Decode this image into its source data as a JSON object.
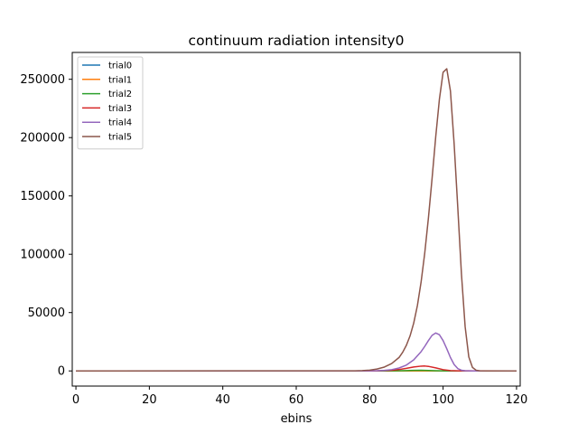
{
  "chart_data": {
    "type": "line",
    "title": "continuum radiation intensity0",
    "xlabel": "ebins",
    "ylabel": "",
    "xlim": [
      -1,
      121
    ],
    "ylim": [
      -13000,
      273000
    ],
    "xticks": [
      0,
      20,
      40,
      60,
      80,
      100,
      120
    ],
    "yticks": [
      0,
      50000,
      100000,
      150000,
      200000,
      250000
    ],
    "legend_position": "top-left",
    "grid": false,
    "series": [
      {
        "name": "trial0",
        "color": "#1f77b4",
        "x": [
          0,
          80,
          84,
          88,
          92,
          95,
          98,
          101,
          104,
          108,
          112,
          120
        ],
        "y": [
          0,
          0,
          0,
          0,
          0,
          0,
          0,
          0,
          0,
          0,
          0,
          0
        ]
      },
      {
        "name": "trial1",
        "color": "#ff7f0e",
        "x": [
          0,
          80,
          84,
          88,
          92,
          95,
          98,
          101,
          104,
          108,
          112,
          120
        ],
        "y": [
          0,
          0,
          0,
          0,
          0,
          0,
          0,
          0,
          0,
          0,
          0,
          0
        ]
      },
      {
        "name": "trial2",
        "color": "#2ca02c",
        "x": [
          0,
          80,
          84,
          86,
          88,
          90,
          92,
          94,
          96,
          98,
          100,
          102,
          104,
          120
        ],
        "y": [
          0,
          0,
          20,
          60,
          150,
          300,
          450,
          520,
          420,
          200,
          60,
          10,
          0,
          0
        ]
      },
      {
        "name": "trial3",
        "color": "#d62728",
        "x": [
          0,
          80,
          82,
          84,
          86,
          88,
          90,
          92,
          94,
          95,
          96,
          98,
          100,
          102,
          104,
          120
        ],
        "y": [
          0,
          20,
          80,
          250,
          600,
          1200,
          2200,
          3400,
          4100,
          4200,
          3900,
          2600,
          1100,
          300,
          50,
          0
        ]
      },
      {
        "name": "trial4",
        "color": "#9467bd",
        "x": [
          0,
          78,
          80,
          82,
          84,
          86,
          88,
          90,
          92,
          94,
          95,
          96,
          97,
          98,
          99,
          100,
          101,
          102,
          103,
          104,
          105,
          106,
          108,
          110,
          120
        ],
        "y": [
          0,
          10,
          50,
          150,
          450,
          1100,
          2500,
          5000,
          9500,
          16500,
          21000,
          26000,
          30500,
          32500,
          31000,
          26000,
          19000,
          11500,
          5500,
          2000,
          600,
          150,
          20,
          0,
          0
        ]
      },
      {
        "name": "trial5",
        "color": "#8c564b",
        "x": [
          0,
          76,
          78,
          80,
          82,
          84,
          86,
          88,
          89,
          90,
          91,
          92,
          93,
          94,
          95,
          96,
          97,
          98,
          99,
          100,
          101,
          102,
          103,
          104,
          105,
          106,
          107,
          108,
          109,
          110,
          112,
          120
        ],
        "y": [
          0,
          100,
          300,
          700,
          1600,
          3300,
          6300,
          11500,
          16000,
          22000,
          30000,
          41000,
          56000,
          76000,
          101000,
          131000,
          165000,
          201000,
          233000,
          256000,
          259000,
          240000,
          195000,
          140000,
          83000,
          38000,
          12000,
          3000,
          600,
          100,
          0,
          0
        ]
      }
    ]
  }
}
